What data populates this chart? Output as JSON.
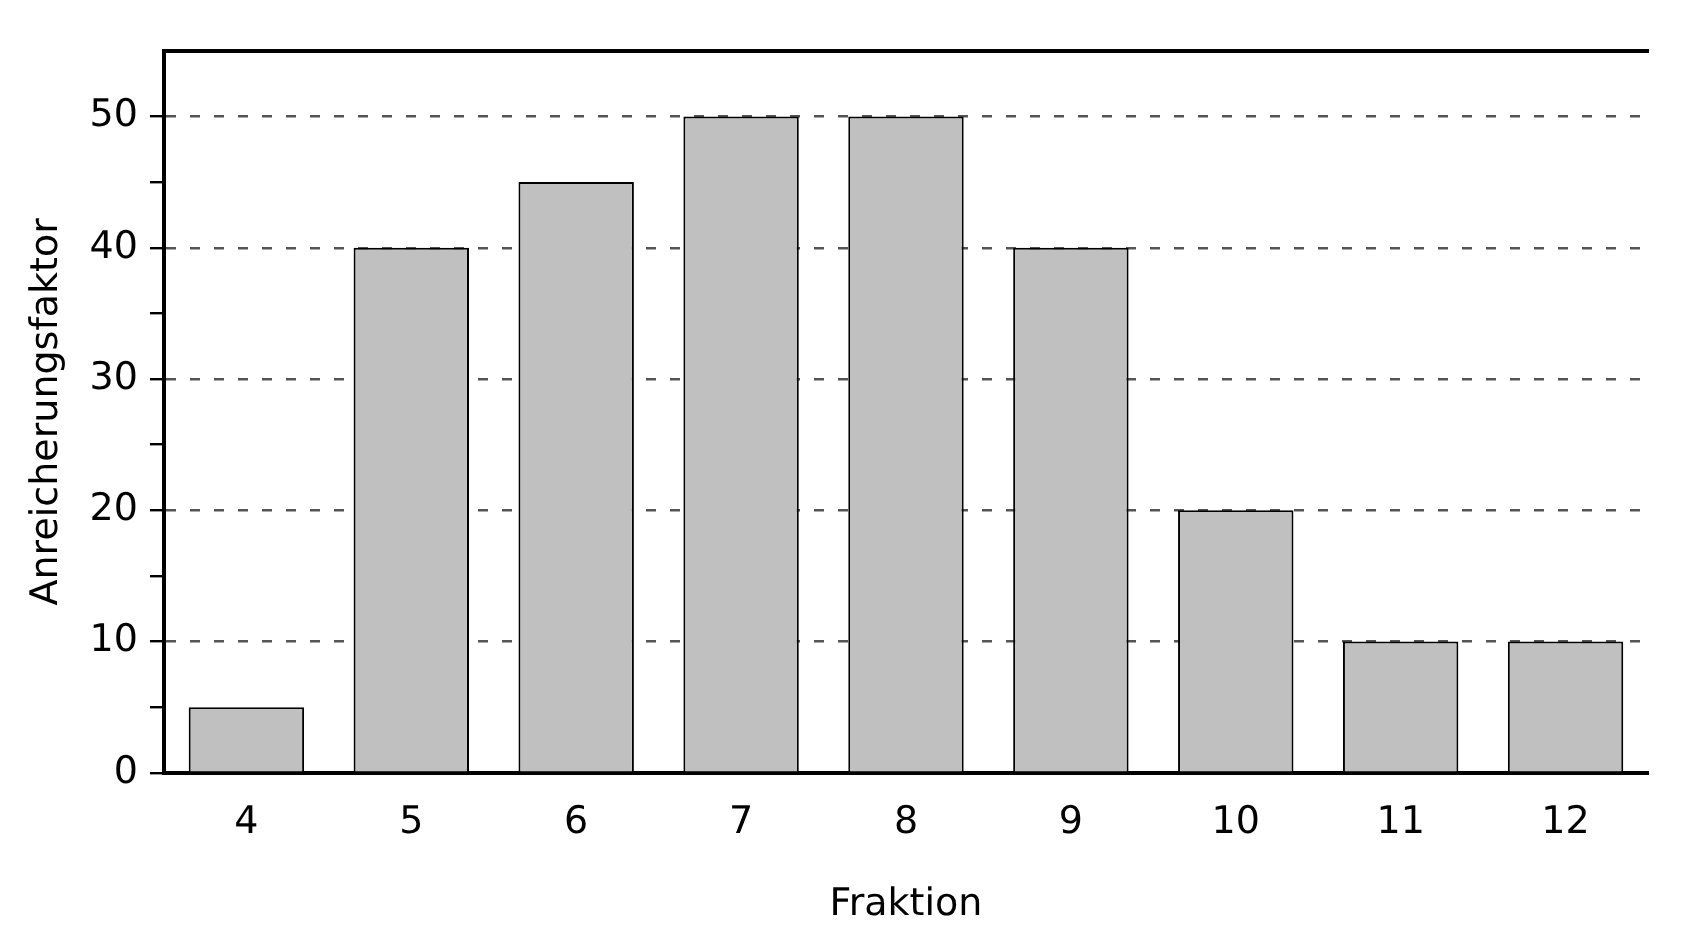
{
  "chart_data": {
    "type": "bar",
    "xlabel": "Fraktion",
    "ylabel": "Anreicherungsfaktor",
    "categories": [
      "4",
      "5",
      "6",
      "7",
      "8",
      "9",
      "10",
      "11",
      "12"
    ],
    "values": [
      5,
      40,
      45,
      50,
      50,
      40,
      20,
      10,
      10
    ],
    "color": "#c0c0c0",
    "ylim": [
      0,
      55
    ],
    "yticks": [
      0,
      {
        "value": 5,
        "label": null
      },
      10,
      {
        "value": 15,
        "label": null
      },
      20,
      {
        "value": 25,
        "label": null
      },
      30,
      {
        "value": 35,
        "label": null
      },
      40,
      {
        "value": 45,
        "label": null
      },
      50
    ],
    "grid": "y",
    "legend": false
  }
}
